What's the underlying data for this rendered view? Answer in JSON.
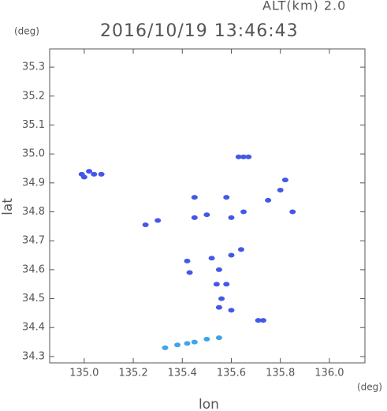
{
  "chart_data": {
    "type": "scatter",
    "title": "2016/10/19 13:46:43",
    "subtitle": "ALT(km) 2.0",
    "x_label": "lon",
    "y_label": "lat",
    "x_unit": "(deg)",
    "y_unit": "(deg)",
    "xlim": [
      134.859,
      136.145
    ],
    "ylim": [
      34.278,
      35.363
    ],
    "xticks": [
      {
        "value": 135,
        "label": "135.0"
      },
      135.2,
      135.4,
      135.6,
      135.8,
      {
        "value": 136,
        "label": "136.0"
      }
    ],
    "yticks": [
      34.3,
      34.4,
      34.5,
      34.6,
      34.7,
      34.8,
      34.9,
      {
        "value": 35,
        "label": "35.0"
      },
      35.1,
      35.2,
      35.3
    ],
    "x": [
      134.99,
      135.0,
      135.02,
      135.04,
      135.07,
      135.25,
      135.3,
      135.63,
      135.65,
      135.67,
      135.8,
      135.82,
      135.45,
      135.5,
      135.45,
      135.58,
      135.6,
      135.65,
      135.75,
      135.85,
      135.42,
      135.43,
      135.52,
      135.55,
      135.6,
      135.64,
      135.54,
      135.56,
      135.55,
      135.58,
      135.6,
      135.71,
      135.73,
      135.33,
      135.38,
      135.42,
      135.45,
      135.5,
      135.55
    ],
    "y": [
      34.93,
      34.92,
      34.94,
      34.93,
      34.93,
      34.755,
      34.77,
      34.99,
      34.99,
      34.99,
      34.875,
      34.91,
      34.85,
      34.79,
      34.78,
      34.85,
      34.78,
      34.8,
      34.84,
      34.8,
      34.63,
      34.59,
      34.64,
      34.6,
      34.65,
      34.67,
      34.55,
      34.5,
      34.47,
      34.55,
      34.46,
      34.425,
      34.425,
      34.33,
      34.34,
      34.345,
      34.35,
      34.36,
      34.365
    ],
    "color": "#4358e6",
    "highlight_color": "#3fa5e8",
    "highlight_from_lat_below": 34.37
  }
}
